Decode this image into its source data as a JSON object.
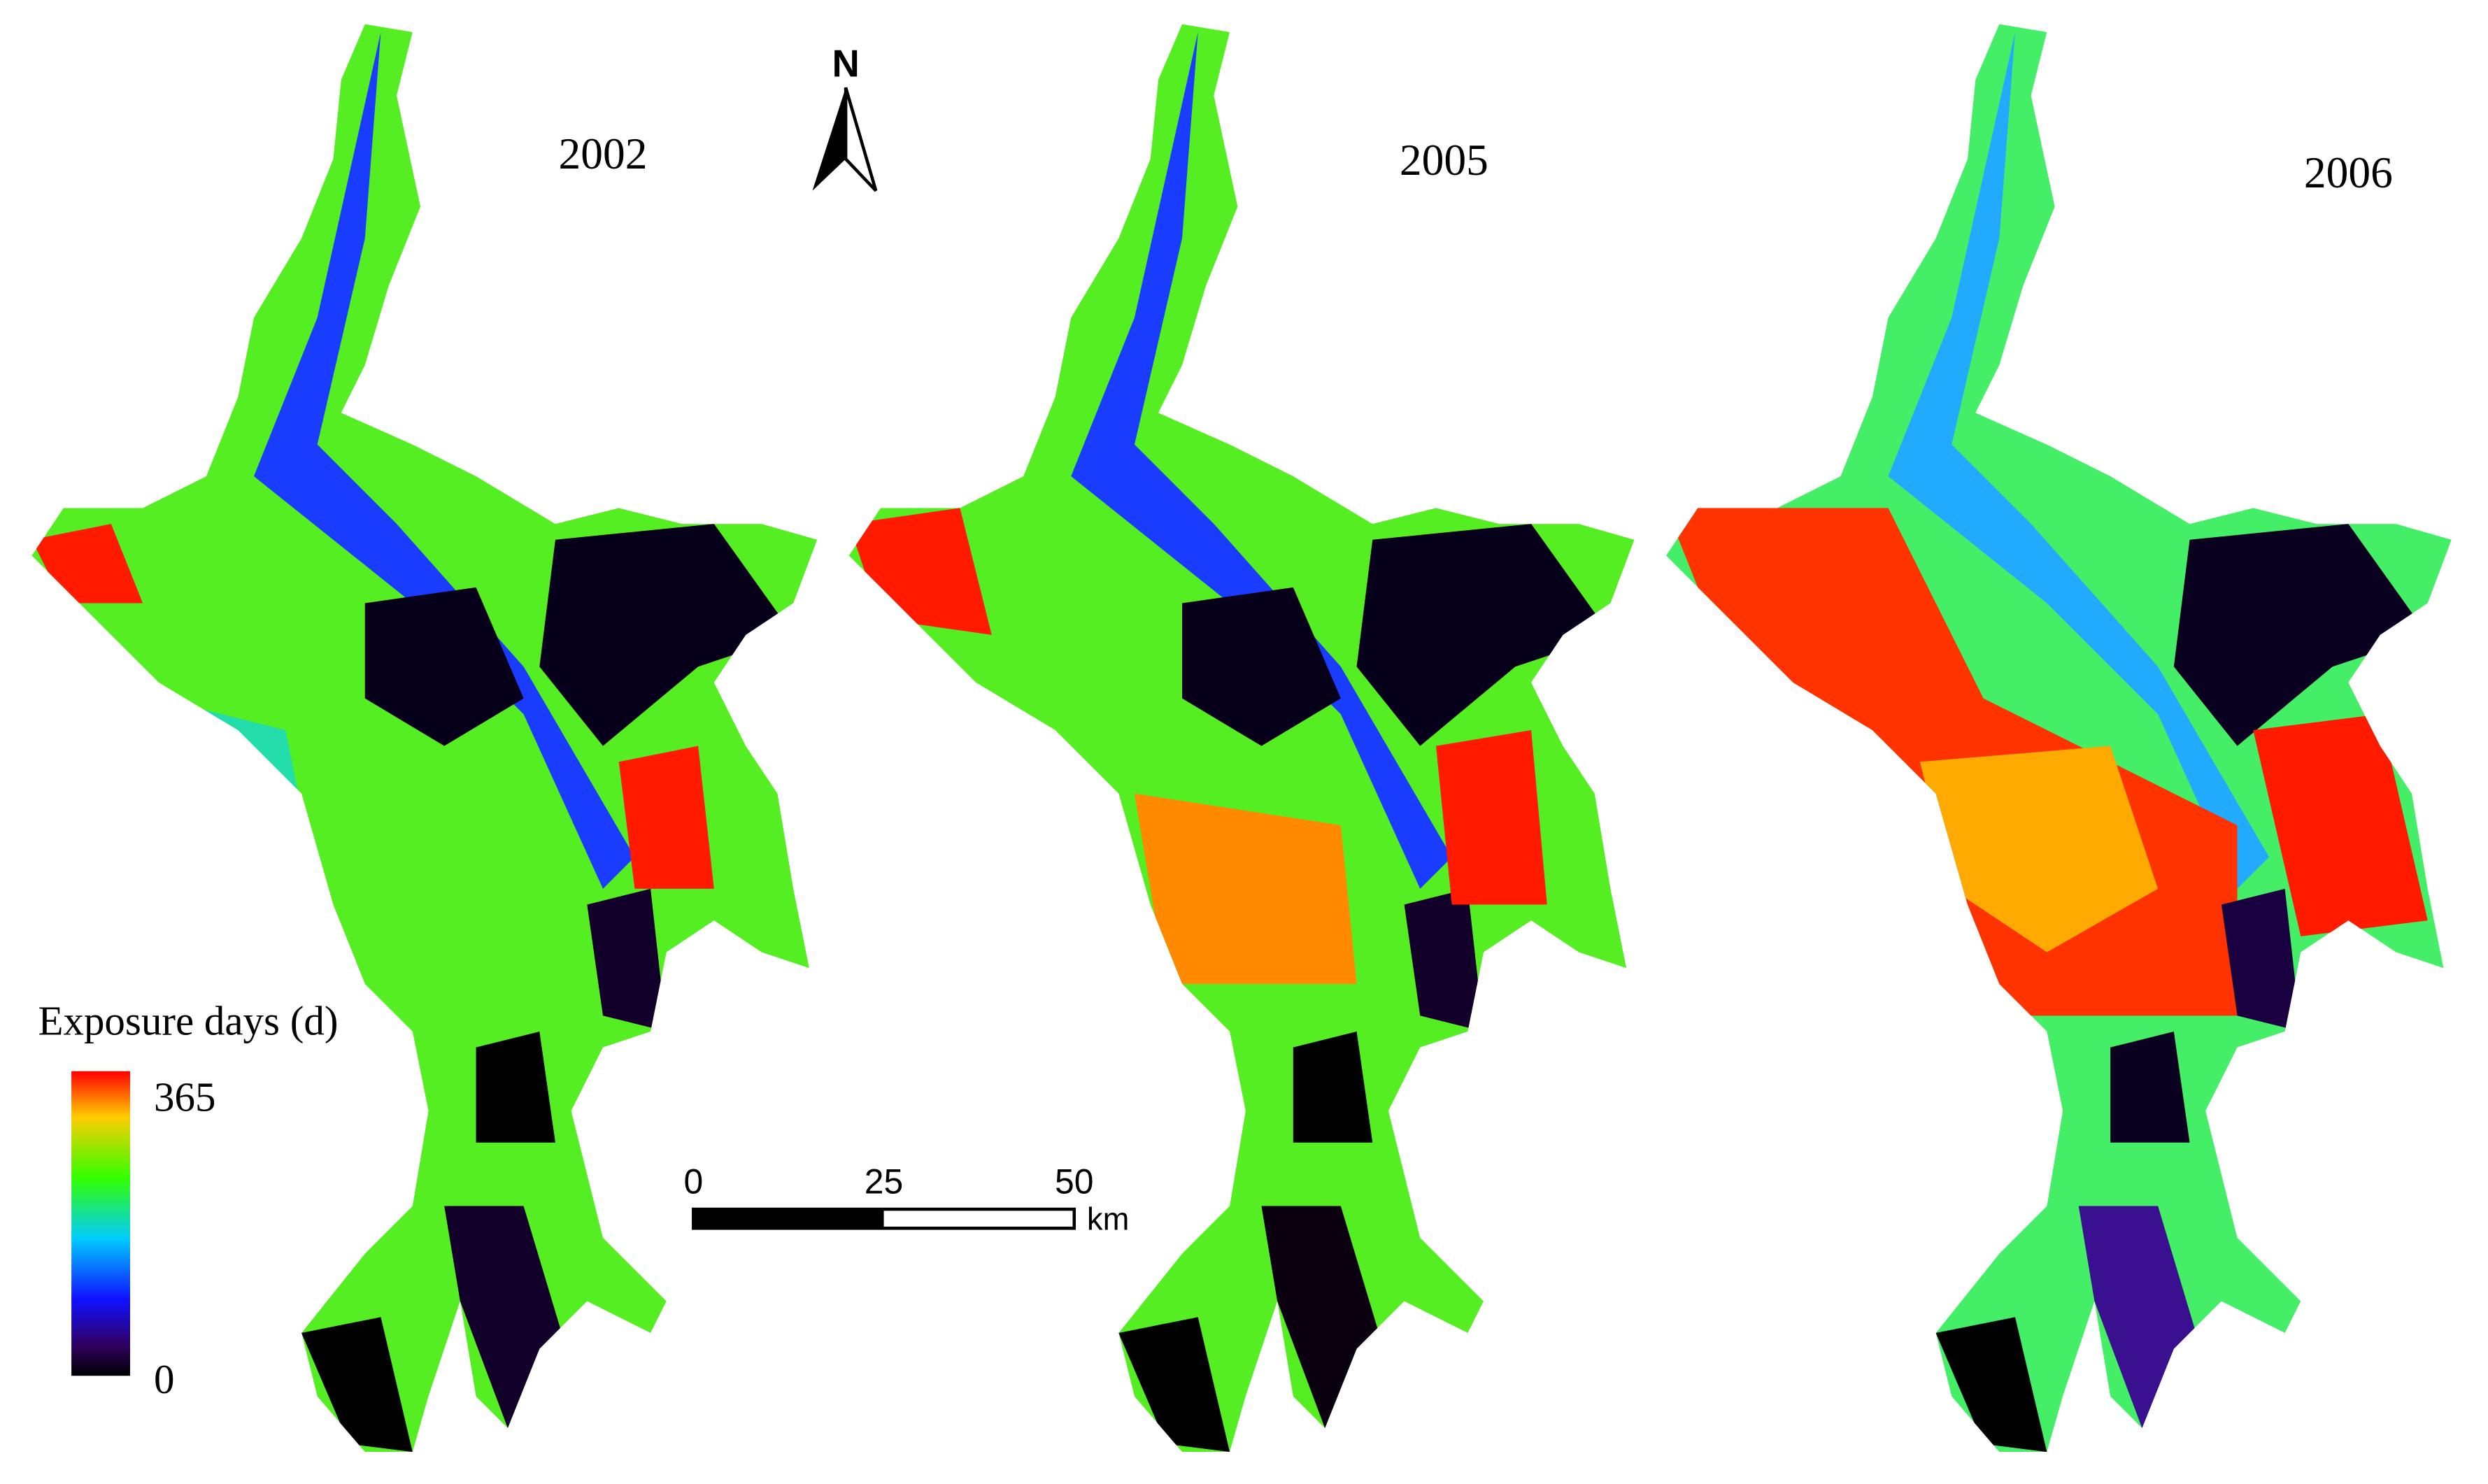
{
  "panels": [
    {
      "year": "2002"
    },
    {
      "year": "2005"
    },
    {
      "year": "2006"
    }
  ],
  "north_arrow": {
    "label": "N"
  },
  "legend": {
    "title": "Exposure days (d)",
    "max": 365,
    "min": 0
  },
  "scale_bar": {
    "ticks": [
      0,
      25,
      50
    ],
    "unit": "km"
  }
}
